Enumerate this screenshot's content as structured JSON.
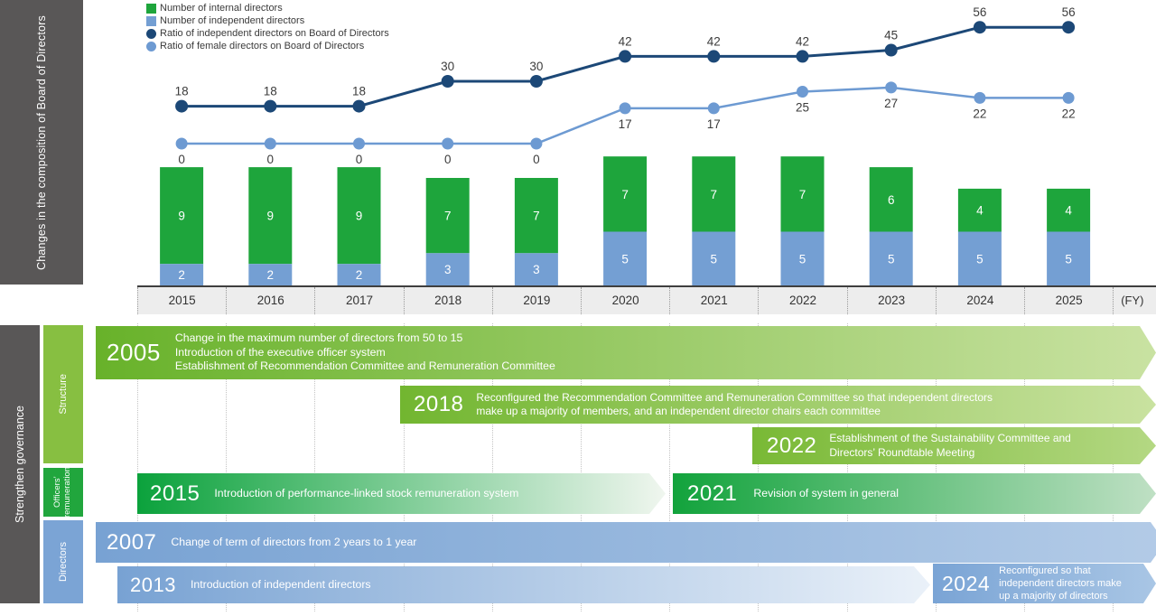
{
  "section_top": {
    "sidebar_label": "Changes in the composition of Board of Directors"
  },
  "chart_data": {
    "type": "bar+line",
    "title": "Changes in the composition of Board of Directors",
    "categories": [
      "2015",
      "2016",
      "2017",
      "2018",
      "2019",
      "2020",
      "2021",
      "2022",
      "2023",
      "2024",
      "2025"
    ],
    "x_axis_suffix": "(FY)",
    "legend": [
      {
        "label": "Number of internal directors",
        "swatch": "square",
        "color": "#1ea53c"
      },
      {
        "label": "Number of independent directors",
        "swatch": "square",
        "color": "#749fd3"
      },
      {
        "label": "Ratio of independent directors on Board of Directors",
        "swatch": "circle",
        "color": "#1c4877"
      },
      {
        "label": "Ratio of female directors on Board of Directors",
        "swatch": "circle",
        "color": "#6d9ad2"
      }
    ],
    "series": [
      {
        "name": "Number of internal directors",
        "type": "bar",
        "color": "#1ea53c",
        "values": [
          9,
          9,
          9,
          7,
          7,
          7,
          7,
          7,
          6,
          4,
          4
        ]
      },
      {
        "name": "Number of independent directors",
        "type": "bar",
        "color": "#749fd3",
        "values": [
          2,
          2,
          2,
          3,
          3,
          5,
          5,
          5,
          5,
          5,
          5
        ]
      },
      {
        "name": "Ratio of independent directors on Board of Directors",
        "type": "line",
        "color": "#1c4877",
        "values": [
          18,
          18,
          18,
          30,
          30,
          42,
          42,
          42,
          45,
          56,
          56
        ]
      },
      {
        "name": "Ratio of female directors on Board of Directors",
        "type": "line",
        "color": "#6d9ad2",
        "values": [
          0,
          0,
          0,
          0,
          0,
          17,
          17,
          25,
          27,
          22,
          22
        ]
      }
    ]
  },
  "timeline": {
    "sidebar_label": "Strengthen governance",
    "categories": [
      {
        "label": "Structure",
        "color": "#87bf41"
      },
      {
        "label": "Officers’\nremuneration",
        "color": "#21a63d"
      },
      {
        "label": "Directors",
        "color": "#7ba4d5"
      }
    ],
    "events": [
      {
        "id": "e2005",
        "year": "2005",
        "text": "Change in the maximum number of directors from 50 to 15\nIntroduction of the executive officer system\nEstablishment of Recommendation Committee and Remuneration Committee",
        "color_from": "#68b22a",
        "color_to": "#c9e2a2"
      },
      {
        "id": "e2018",
        "year": "2018",
        "text": "Reconfigured the Recommendation Committee and Remuneration Committee so that independent directors\nmake up a majority of members, and an independent director chairs each committee",
        "color_from": "#72b630",
        "color_to": "#c9e2a0"
      },
      {
        "id": "e2022",
        "year": "2022",
        "text": "Establishment of the Sustainability Committee and\nDirectors’ Roundtable Meeting",
        "color_from": "#79b935",
        "color_to": "#b4d883"
      },
      {
        "id": "e2015",
        "year": "2015",
        "text": "Introduction of performance-linked stock remuneration system",
        "color_from": "#0ba23c",
        "color_to": "#f0f6ef"
      },
      {
        "id": "e2021",
        "year": "2021",
        "text": "Revision of system in general",
        "color_from": "#12a33c",
        "color_to": "#bfe0c4"
      },
      {
        "id": "e2007",
        "year": "2007",
        "text": "Change of term of directors from 2 years to 1 year",
        "color_from": "#78a2d3",
        "color_to": "#b3cbe7"
      },
      {
        "id": "e2013",
        "year": "2013",
        "text": "Introduction of independent directors",
        "color_from": "#78a2d3",
        "color_to": "#eaf1f9"
      },
      {
        "id": "e2024",
        "year": "2024",
        "text": "Reconfigured so that\nindependent directors make\nup a majority of directors",
        "color_from": "#7aa4d5",
        "color_to": "#a9c6e5"
      }
    ]
  }
}
